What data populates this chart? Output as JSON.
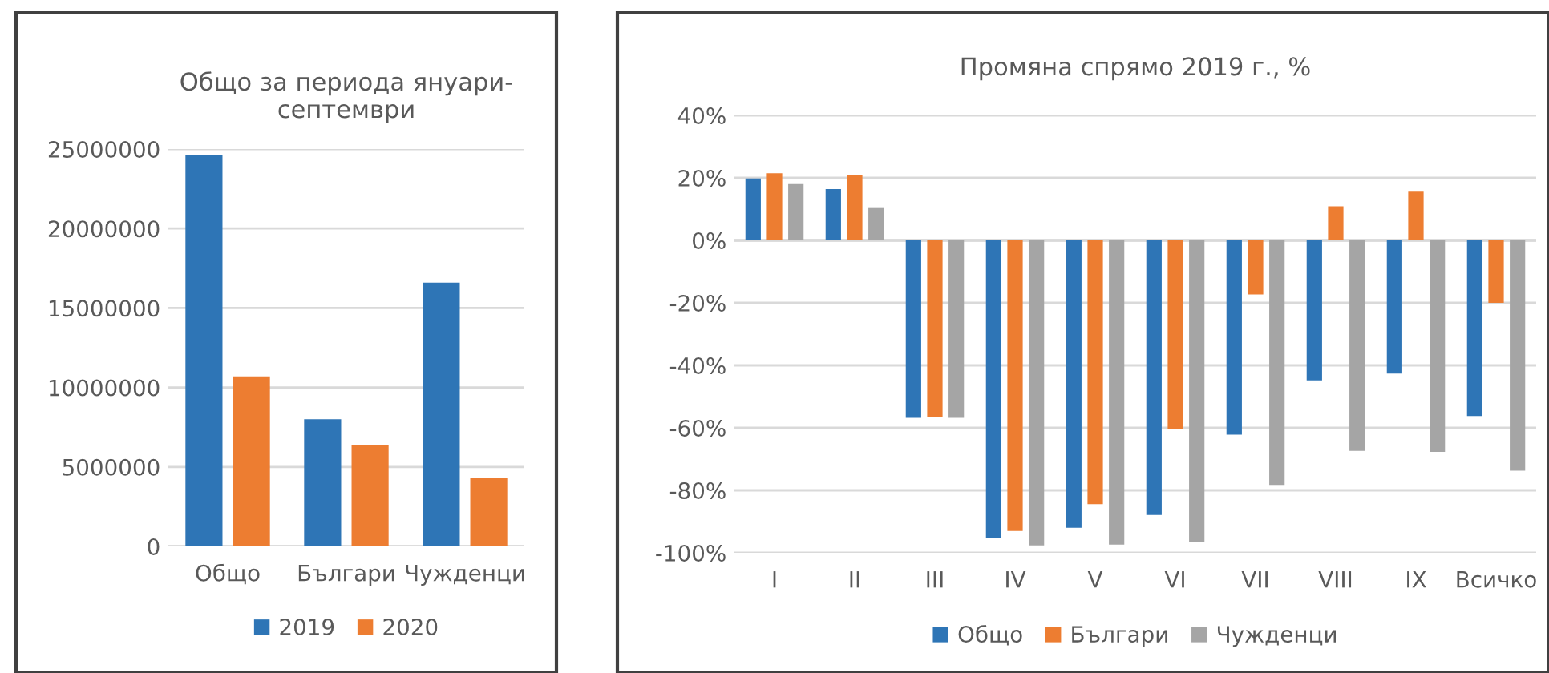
{
  "chart_data": [
    {
      "type": "bar",
      "title": "Общо за периода януари-\nсептември",
      "categories": [
        "Общо",
        "Българи",
        "Чужденци"
      ],
      "series": [
        {
          "name": "2019",
          "color": "#2e75b6",
          "values": [
            24600000,
            8000000,
            16600000
          ]
        },
        {
          "name": "2020",
          "color": "#ed7d31",
          "values": [
            10700000,
            6400000,
            4300000
          ]
        }
      ],
      "ylim": [
        0,
        25000000
      ],
      "yticks": [
        0,
        5000000,
        10000000,
        15000000,
        20000000,
        25000000
      ],
      "grid": "y",
      "legend": "bottom"
    },
    {
      "type": "bar",
      "title": "Промяна спрямо 2019 г., %",
      "categories": [
        "I",
        "II",
        "III",
        "IV",
        "V",
        "VI",
        "VII",
        "VIII",
        "IX",
        "Всичко"
      ],
      "series": [
        {
          "name": "Общо",
          "color": "#2e75b6",
          "values": [
            19.8,
            16.4,
            -56.8,
            -95.4,
            -92,
            -87.9,
            -62.2,
            -44.8,
            -42.6,
            -56.2
          ]
        },
        {
          "name": "Българи",
          "color": "#ed7d31",
          "values": [
            21.5,
            21,
            -56.4,
            -93,
            -84.4,
            -60.5,
            -17.3,
            10.9,
            15.6,
            -20
          ]
        },
        {
          "name": "Чужденци",
          "color": "#a5a5a5",
          "values": [
            18,
            10.6,
            -56.8,
            -97.6,
            -97.4,
            -96.4,
            -78.3,
            -67.4,
            -67.7,
            -73.7
          ]
        }
      ],
      "ylim": [
        -100,
        40
      ],
      "yticks": [
        {
          "value": -100,
          "label": "-100%"
        },
        {
          "value": -80,
          "label": "-80%"
        },
        {
          "value": -60,
          "label": "-60%"
        },
        {
          "value": -40,
          "label": "-40%"
        },
        {
          "value": -20,
          "label": "-20%"
        },
        {
          "value": 0,
          "label": "0%"
        },
        {
          "value": 20,
          "label": "20%"
        },
        {
          "value": 40,
          "label": "40%"
        }
      ],
      "grid": "y",
      "legend": "bottom"
    }
  ]
}
